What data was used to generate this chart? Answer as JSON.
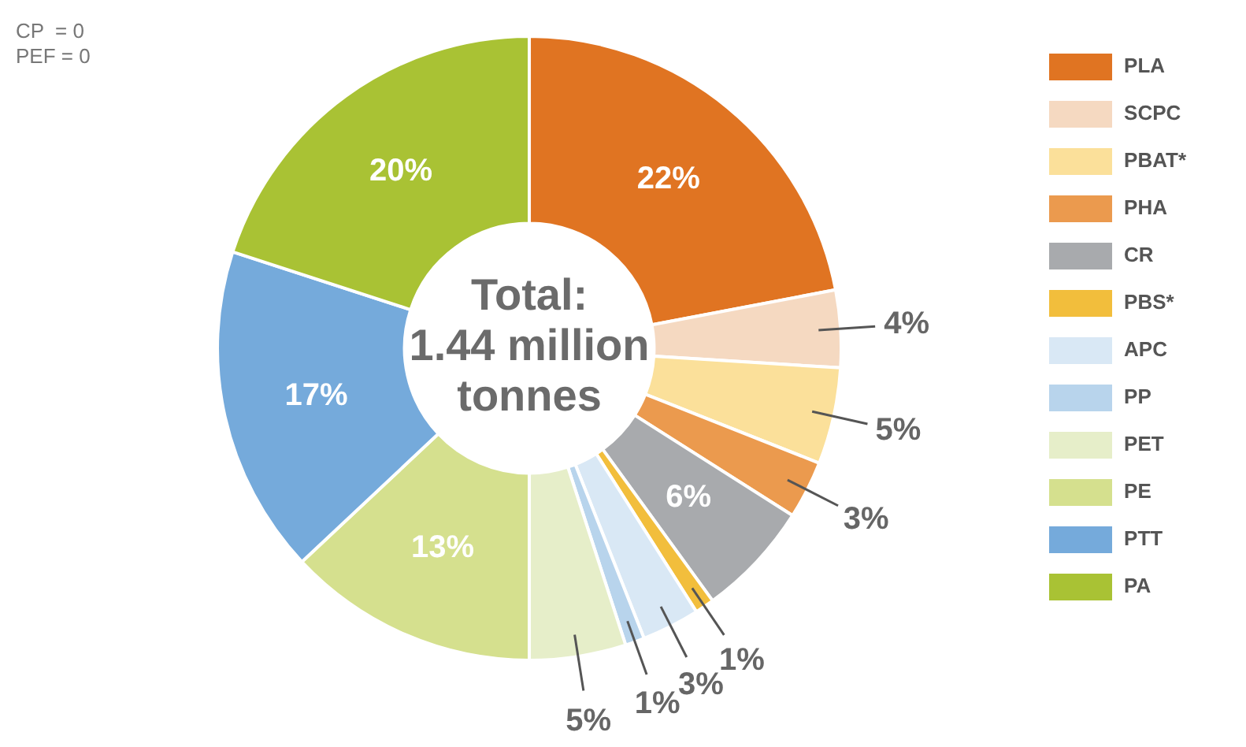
{
  "chart_data": {
    "type": "donut",
    "title": "Total: 1.44 million tonnes",
    "categories": [
      "PLA",
      "SCPC",
      "PBAT*",
      "PHA",
      "CR",
      "PBS*",
      "APC",
      "PP",
      "PET",
      "PE",
      "PTT",
      "PA"
    ],
    "values": [
      22,
      4,
      5,
      3,
      6,
      1,
      3,
      1,
      5,
      13,
      17,
      20
    ],
    "value_labels": [
      "22%",
      "4%",
      "5%",
      "3%",
      "6%",
      "1%",
      "3%",
      "1%",
      "5%",
      "13%",
      "17%",
      "20%"
    ],
    "colors": [
      "#e07422",
      "#f5d9c1",
      "#fbe09a",
      "#eb9a4e",
      "#a8aaad",
      "#f2be3c",
      "#d9e8f5",
      "#b8d4ec",
      "#e6eec9",
      "#d5e08e",
      "#75aadb",
      "#a9c234"
    ],
    "annotations": [
      "CP  = 0",
      "PEF = 0"
    ],
    "legend": "right"
  }
}
